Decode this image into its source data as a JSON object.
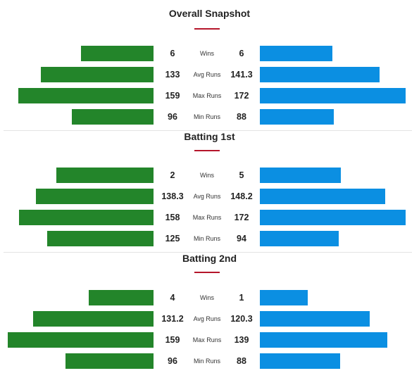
{
  "colors": {
    "team_left": "#23852a",
    "team_right": "#0b8fe2",
    "accent": "#b5162b"
  },
  "sections": [
    {
      "title": "Overall Snapshot",
      "rows": [
        {
          "label": "Wins",
          "left": "6",
          "right": "6"
        },
        {
          "label": "Avg Runs",
          "left": "133",
          "right": "141.3"
        },
        {
          "label": "Max Runs",
          "left": "159",
          "right": "172"
        },
        {
          "label": "Min Runs",
          "left": "96",
          "right": "88"
        }
      ]
    },
    {
      "title": "Batting 1st",
      "rows": [
        {
          "label": "Wins",
          "left": "2",
          "right": "5"
        },
        {
          "label": "Avg Runs",
          "left": "138.3",
          "right": "148.2"
        },
        {
          "label": "Max Runs",
          "left": "158",
          "right": "172"
        },
        {
          "label": "Min Runs",
          "left": "125",
          "right": "94"
        }
      ]
    },
    {
      "title": "Batting 2nd",
      "rows": [
        {
          "label": "Wins",
          "left": "4",
          "right": "1"
        },
        {
          "label": "Avg Runs",
          "left": "131.2",
          "right": "120.3"
        },
        {
          "label": "Max Runs",
          "left": "159",
          "right": "139"
        },
        {
          "label": "Min Runs",
          "left": "96",
          "right": "88"
        }
      ]
    }
  ]
}
